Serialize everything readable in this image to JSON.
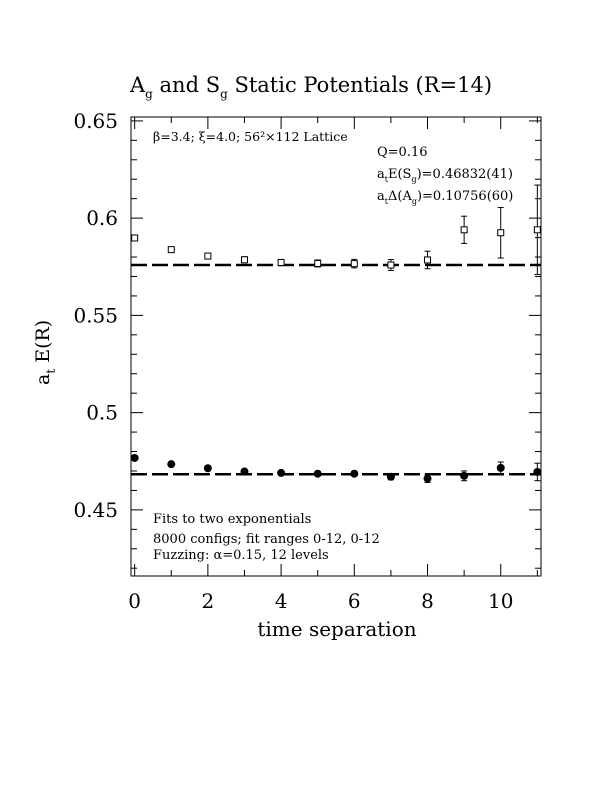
{
  "chart_data": {
    "type": "scatter",
    "title": {
      "a": "A",
      "a_sub": "g",
      "and": " and ",
      "s": "S",
      "s_sub": "g",
      "rest": " Static Potentials (R=14)"
    },
    "xlabel": "time separation",
    "ylabel": {
      "a": "a",
      "a_sub": "t",
      "rest": " E(R)"
    },
    "xlim": [
      -0.1,
      11.1
    ],
    "ylim": [
      0.416,
      0.652
    ],
    "xticks": [
      0,
      2,
      4,
      6,
      8,
      10
    ],
    "yticks": [
      0.45,
      0.5,
      0.55,
      0.6,
      0.65
    ],
    "xtick_labels": [
      "0",
      "2",
      "4",
      "6",
      "8",
      "10"
    ],
    "ytick_labels": [
      "0.45",
      "0.5",
      "0.55",
      "0.6",
      "0.65"
    ],
    "annotations": {
      "top_left": "β=3.4; ξ=4.0; 56²×112 Lattice",
      "q": "Q=0.16",
      "es": {
        "pre": "a",
        "pre_sub": "t",
        "mid": "E(S",
        "mid_sub": "g",
        "post": ")=0.46832(41)"
      },
      "da": {
        "pre": "a",
        "pre_sub": "t",
        "mid": "Δ(A",
        "mid_sub": "g",
        "post": ")=0.10756(60)"
      },
      "bottom": [
        "Fits to two exponentials",
        "8000 configs; fit ranges 0-12, 0-12",
        "Fuzzing: α=0.15, 12 levels"
      ]
    },
    "fit_lines": [
      0.5759,
      0.4683
    ],
    "series": [
      {
        "marker": "filled-circle",
        "points": [
          {
            "x": 0,
            "y": 0.4767,
            "err": 0.001
          },
          {
            "x": 1,
            "y": 0.4735,
            "err": 0.0009
          },
          {
            "x": 2,
            "y": 0.4714,
            "err": 0.0008
          },
          {
            "x": 3,
            "y": 0.4697,
            "err": 0.0008
          },
          {
            "x": 4,
            "y": 0.469,
            "err": 0.0008
          },
          {
            "x": 5,
            "y": 0.4686,
            "err": 0.001
          },
          {
            "x": 6,
            "y": 0.4686,
            "err": 0.0012
          },
          {
            "x": 7,
            "y": 0.467,
            "err": 0.0015
          },
          {
            "x": 8,
            "y": 0.4661,
            "err": 0.002
          },
          {
            "x": 9,
            "y": 0.4675,
            "err": 0.0025
          },
          {
            "x": 10,
            "y": 0.4716,
            "err": 0.003
          },
          {
            "x": 11,
            "y": 0.4695,
            "err": 0.0045
          }
        ]
      },
      {
        "marker": "open-square",
        "points": [
          {
            "x": 0,
            "y": 0.5898,
            "err": 0.001
          },
          {
            "x": 1,
            "y": 0.5838,
            "err": 0.001
          },
          {
            "x": 2,
            "y": 0.5805,
            "err": 0.0012
          },
          {
            "x": 3,
            "y": 0.5786,
            "err": 0.0015
          },
          {
            "x": 4,
            "y": 0.5772,
            "err": 0.0015
          },
          {
            "x": 5,
            "y": 0.5767,
            "err": 0.0018
          },
          {
            "x": 6,
            "y": 0.5766,
            "err": 0.0022
          },
          {
            "x": 7,
            "y": 0.5759,
            "err": 0.0028
          },
          {
            "x": 8,
            "y": 0.5785,
            "err": 0.0045
          },
          {
            "x": 9,
            "y": 0.594,
            "err": 0.007
          },
          {
            "x": 10,
            "y": 0.5925,
            "err": 0.013
          },
          {
            "x": 11,
            "y": 0.594,
            "err": 0.023
          }
        ]
      }
    ]
  }
}
